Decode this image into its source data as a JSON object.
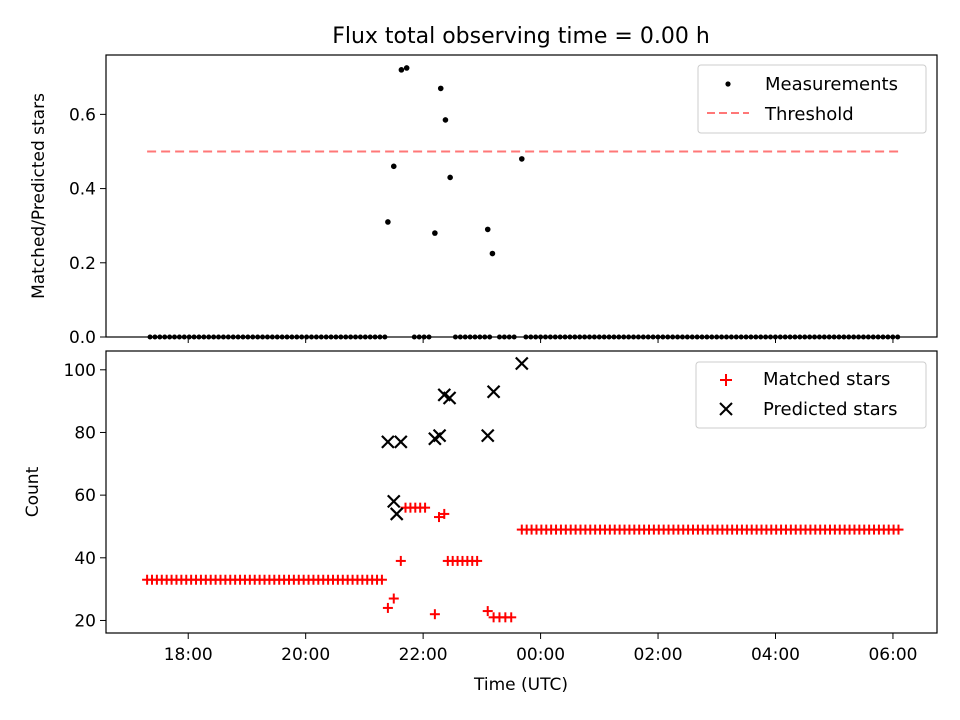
{
  "chart_data": [
    {
      "type": "scatter",
      "title": "Flux total observing time = 0.00 h",
      "xlabel": "",
      "ylabel": "Matched/Predicted stars",
      "ylim": [
        0.0,
        0.76
      ],
      "yticks": [
        "0.0",
        "0.2",
        "0.4",
        "0.6"
      ],
      "grid": false,
      "legend": {
        "placement": "top-right",
        "entries": [
          "Measurements",
          "Threshold"
        ]
      },
      "series": [
        {
          "name": "Measurements",
          "marker": "dot",
          "color": "#000000",
          "points_description": "zero-ratio points along the baseline plus non-zero points",
          "x_range_zero": [
            [
              17.35,
              21.35
            ],
            [
              21.85,
              22.15
            ],
            [
              22.55,
              23.15
            ],
            [
              23.3,
              23.55
            ],
            [
              23.75,
              30.15
            ]
          ],
          "zero_step_hours": 0.0833,
          "nonzero_x": [
            21.4,
            21.5,
            21.63,
            21.72,
            22.2,
            22.3,
            22.38,
            22.46,
            23.1,
            23.18,
            23.68
          ],
          "nonzero_y": [
            0.31,
            0.46,
            0.72,
            0.725,
            0.28,
            0.67,
            0.585,
            0.43,
            0.29,
            0.225,
            0.48
          ]
        },
        {
          "name": "Threshold",
          "marker": "dashed-line",
          "color": "#ff7777",
          "x": [
            17.3,
            30.15
          ],
          "y": [
            0.5,
            0.5
          ]
        }
      ]
    },
    {
      "type": "scatter",
      "title": "",
      "xlabel": "Time (UTC)",
      "ylabel": "Count",
      "ylim": [
        16,
        106
      ],
      "yticks": [
        "20",
        "40",
        "60",
        "80",
        "100"
      ],
      "xticks": [
        "18:00",
        "20:00",
        "22:00",
        "00:00",
        "02:00",
        "04:00",
        "06:00"
      ],
      "xtick_hours": [
        18,
        20,
        22,
        24,
        26,
        28,
        30
      ],
      "xlim_hours": [
        16.6,
        30.75
      ],
      "grid": false,
      "legend": {
        "placement": "top-right",
        "entries": [
          "Matched stars",
          "Predicted stars"
        ]
      },
      "series": [
        {
          "name": "Matched stars",
          "marker": "plus",
          "color": "#ff0000",
          "constant_runs": [
            {
              "x_start": 17.3,
              "x_end": 21.35,
              "y": 33
            },
            {
              "x_start": 21.7,
              "x_end": 22.1,
              "y": 56
            },
            {
              "x_start": 22.42,
              "x_end": 23.0,
              "y": 39
            },
            {
              "x_start": 23.68,
              "x_end": 30.15,
              "y": 49
            }
          ],
          "run_step_hours": 0.0833,
          "extra_x": [
            21.4,
            21.5,
            21.62,
            22.2,
            22.27,
            22.36,
            23.1,
            23.2,
            23.3,
            23.4,
            23.5
          ],
          "extra_y": [
            24,
            27,
            39,
            22,
            53,
            54,
            23,
            21,
            21,
            21,
            21
          ]
        },
        {
          "name": "Predicted stars",
          "marker": "x",
          "color": "#000000",
          "x": [
            21.4,
            21.5,
            21.55,
            21.62,
            22.2,
            22.28,
            22.36,
            22.45,
            23.1,
            23.2,
            23.68
          ],
          "y": [
            77,
            58,
            54,
            77,
            78,
            79,
            92,
            91,
            79,
            93,
            102
          ]
        }
      ]
    }
  ]
}
